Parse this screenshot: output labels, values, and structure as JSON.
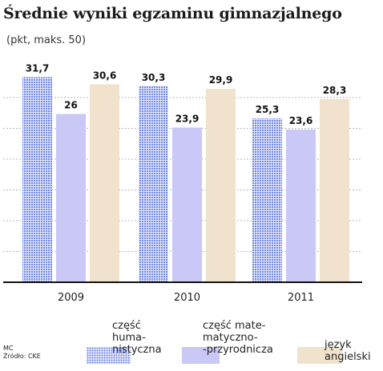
{
  "title": "Średnie wyniki egzaminu gimnazjalnego",
  "subtitle": "(pkt, maks. 50)",
  "chart_data": {
    "type": "bar",
    "categories": [
      "2009",
      "2010",
      "2011"
    ],
    "series": [
      {
        "name": "część humanistyczna",
        "values": [
          31.7,
          30.3,
          25.3
        ],
        "labels": [
          "31,7",
          "30,3",
          "25,3"
        ],
        "color": "#6f86e6",
        "pattern": "dotted"
      },
      {
        "name": "część matematyczno-przyrodnicza",
        "values": [
          26,
          23.9,
          23.6
        ],
        "labels": [
          "26",
          "23,9",
          "23,6"
        ],
        "color": "#c9c8f7"
      },
      {
        "name": "język angielski",
        "values": [
          30.6,
          29.9,
          28.3
        ],
        "labels": [
          "30,6",
          "29,9",
          "28,3"
        ],
        "color": "#f0e2cc"
      }
    ],
    "ylim": [
      0,
      32
    ],
    "grid": true,
    "legend": "bottom"
  },
  "legend": [
    {
      "lines": [
        "część",
        "huma-",
        "nistyczna"
      ]
    },
    {
      "lines": [
        "część mate-",
        "matyczno-",
        "-przyrodnicza"
      ]
    },
    {
      "lines": [
        "język",
        "angielski"
      ]
    }
  ],
  "credit": {
    "author": "MC",
    "source": "Źródło: CKE"
  }
}
